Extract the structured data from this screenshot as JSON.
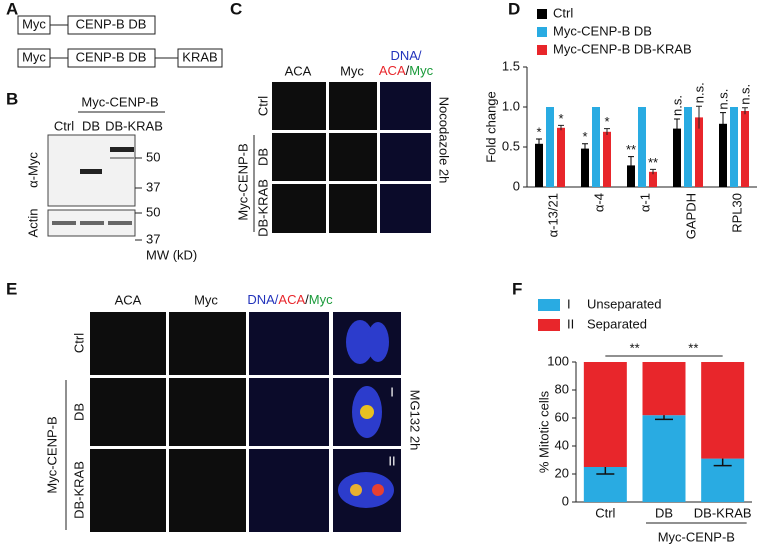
{
  "panels": {
    "a": {
      "label": "A",
      "constructs": [
        [
          "Myc",
          "CENP-B DB"
        ],
        [
          "Myc",
          "CENP-B DB",
          "KRAB"
        ]
      ]
    },
    "b": {
      "label": "B",
      "group": "Myc-CENP-B",
      "lanes": [
        "Ctrl",
        "DB",
        "DB-KRAB"
      ],
      "blots": [
        "α-Myc",
        "Actin"
      ],
      "markers": [
        [
          50,
          37
        ],
        [
          50,
          37
        ]
      ],
      "mw_label": "MW (kD)"
    },
    "c": {
      "label": "C",
      "columns": [
        "ACA",
        "Myc"
      ],
      "merge": [
        "DNA/",
        "ACA",
        "/",
        "Myc"
      ],
      "rows": [
        "Ctrl",
        "DB",
        "DB-KRAB"
      ],
      "group": "Myc-CENP-B",
      "treatment": "Nocodazole 2h"
    },
    "d": {
      "label": "D"
    },
    "e": {
      "label": "E",
      "columns": [
        "ACA",
        "Myc"
      ],
      "merge": [
        "DNA/",
        "ACA",
        "/",
        "Myc"
      ],
      "rows": [
        "Ctrl",
        "DB",
        "DB-KRAB"
      ],
      "group": "Myc-CENP-B",
      "treatment": "MG132 2h",
      "insets": [
        "I",
        "II"
      ]
    },
    "f": {
      "label": "F"
    }
  },
  "chart_data": [
    {
      "type": "bar",
      "ylabel": "Fold change",
      "categories": [
        "α-13/21",
        "α-4",
        "α-1",
        "GAPDH",
        "RPL30"
      ],
      "ylim": [
        0,
        1.5
      ],
      "yticks": [
        0,
        0.5,
        {
          "value": 1,
          "label": "1.0"
        },
        1.5
      ],
      "series": [
        {
          "name": "Ctrl",
          "color": "#000000",
          "values": [
            0.54,
            0.48,
            0.27,
            0.73,
            0.79
          ],
          "errors": [
            0.06,
            0.06,
            0.11,
            0.12,
            0.14
          ],
          "annotations": [
            "*",
            "*",
            "**",
            "n.s.",
            "n.s."
          ]
        },
        {
          "name": "Myc-CENP-B DB",
          "color": "#29abe2",
          "values": [
            1,
            1,
            1,
            1,
            1
          ]
        },
        {
          "name": "Myc-CENP-B DB-KRAB",
          "color": "#e8262b",
          "values": [
            0.74,
            0.69,
            0.19,
            0.87,
            0.95
          ],
          "errors": [
            0.03,
            0.04,
            0.03,
            0.14,
            0.04
          ],
          "annotations": [
            "*",
            "*",
            "**",
            "n.s.",
            "n.s."
          ]
        }
      ]
    },
    {
      "type": "stacked_bar",
      "ylabel": "% Mitotic cells",
      "categories": [
        "Ctrl",
        "DB",
        "DB-KRAB"
      ],
      "group_label": "Myc-CENP-B",
      "ylim": [
        0,
        100
      ],
      "yticks": [
        0,
        20,
        40,
        60,
        80,
        100
      ],
      "significance": [
        "**",
        "**"
      ],
      "series": [
        {
          "name": "Unseparated",
          "marker": "I",
          "color": "#29abe2",
          "values": [
            25,
            62,
            31
          ],
          "errors": [
            5,
            3,
            5
          ]
        },
        {
          "name": "Separated",
          "marker": "II",
          "color": "#e8262b",
          "values": [
            75,
            38,
            69
          ]
        }
      ]
    }
  ]
}
